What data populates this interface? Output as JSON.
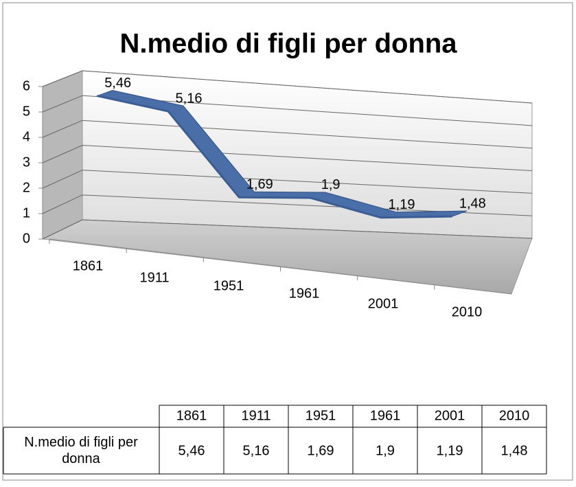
{
  "chart_data": {
    "type": "line",
    "title": "N.medio di figli per donna",
    "categories": [
      "1861",
      "1911",
      "1951",
      "1961",
      "2001",
      "2010"
    ],
    "series": [
      {
        "name": "N.medio di figli per donna",
        "color": "#4a6ea8",
        "values": [
          5.46,
          5.16,
          1.69,
          1.9,
          1.19,
          1.48
        ],
        "value_labels": [
          "5,46",
          "5,16",
          "1,69",
          "1,9",
          "1,19",
          "1,48"
        ]
      }
    ],
    "ylim": [
      0,
      6
    ],
    "yticks": [
      0,
      1,
      2,
      3,
      4,
      5,
      6
    ],
    "grid": true
  }
}
